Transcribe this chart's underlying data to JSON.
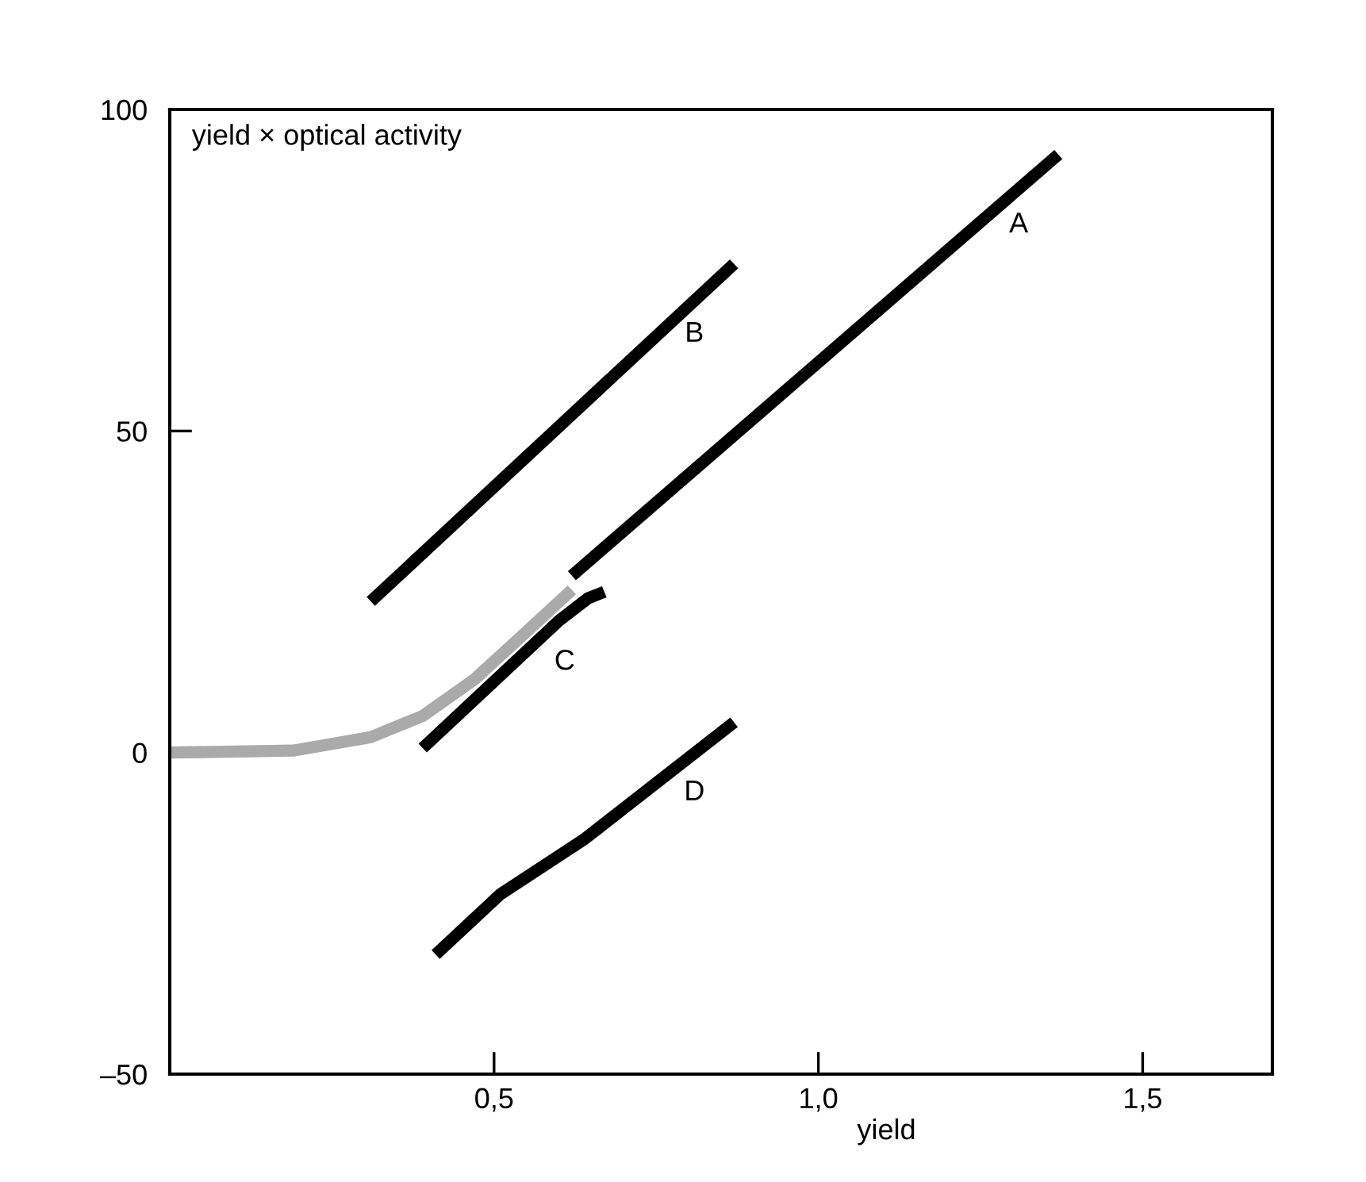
{
  "chart_data": {
    "type": "line",
    "xlabel": "yield",
    "ylabel": "yield × optical activity",
    "xlim": [
      0,
      1.7
    ],
    "ylim": [
      -50,
      100
    ],
    "xticks": [
      {
        "value": 0.5,
        "label": "0,5"
      },
      {
        "value": 1.0,
        "label": "1,0"
      },
      {
        "value": 1.5,
        "label": "1,5"
      }
    ],
    "yticks": [
      {
        "value": -50,
        "label": "–50"
      },
      0,
      50,
      100
    ],
    "grid": false,
    "legend": false,
    "marker": "none",
    "line_style": "solid",
    "series": [
      {
        "name": "A",
        "color": "#000000",
        "x": [
          0.62,
          1.37
        ],
        "values": [
          27.5,
          93
        ]
      },
      {
        "name": "B",
        "color": "#000000",
        "x": [
          0.31,
          0.87
        ],
        "values": [
          23.5,
          76
        ]
      },
      {
        "name": "C",
        "color": "#000000",
        "x": [
          0.39,
          0.6,
          0.645,
          0.67
        ],
        "values": [
          0.7,
          20.5,
          24,
          25
        ]
      },
      {
        "name": "D",
        "color": "#000000",
        "x": [
          0.41,
          0.51,
          0.64,
          0.87
        ],
        "values": [
          -31.4,
          -22,
          -13.4,
          4.7
        ]
      },
      {
        "color": "#aaaaaa",
        "x": [
          0.0,
          0.19,
          0.31,
          0.39,
          0.47,
          0.55,
          0.62
        ],
        "values": [
          0,
          0.3,
          2.4,
          5.7,
          11.4,
          18.8,
          25.3
        ]
      }
    ]
  }
}
